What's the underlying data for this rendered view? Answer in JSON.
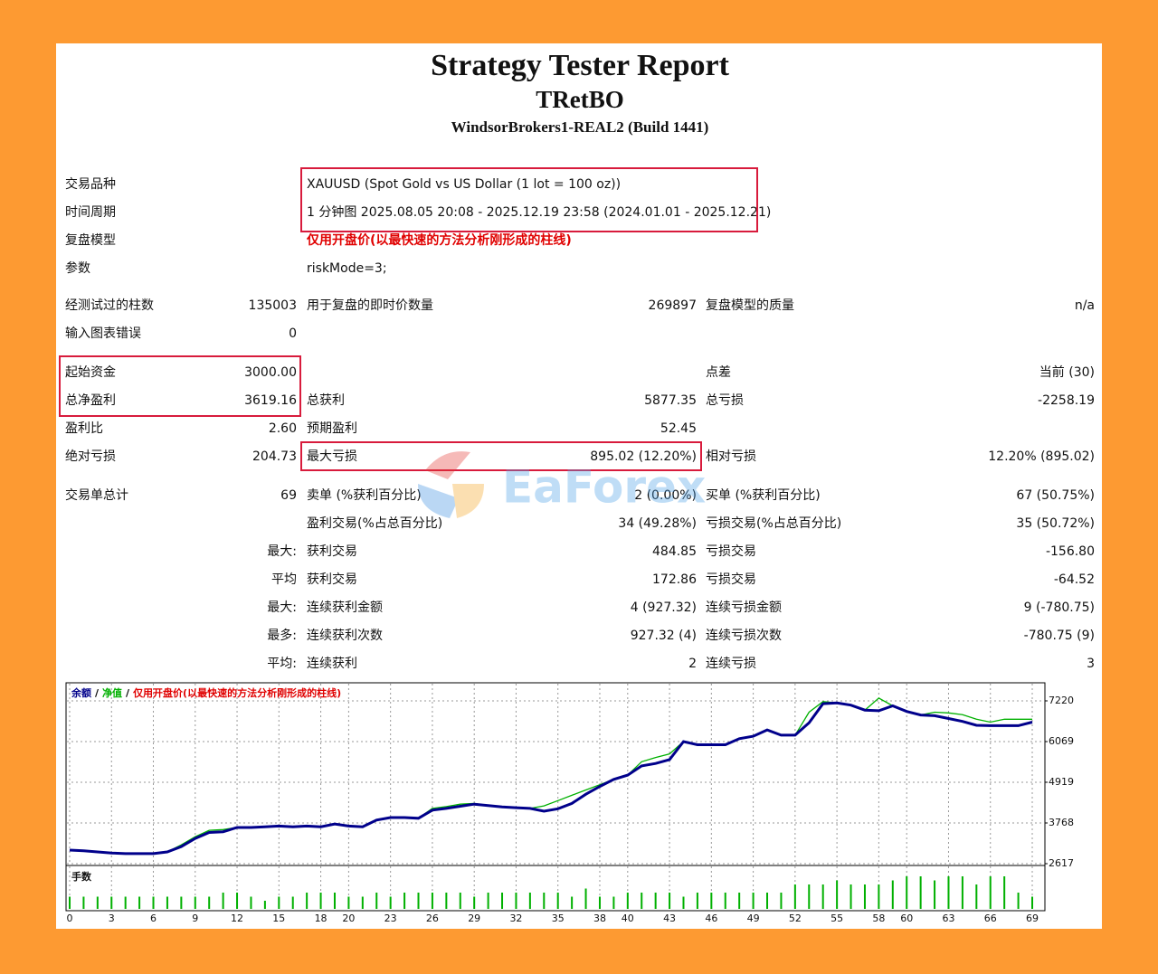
{
  "header": {
    "title": "Strategy Tester Report",
    "name": "TRetBO",
    "server": "WindsorBrokers1-REAL2 (Build 1441)"
  },
  "info_rows": [
    {
      "label": "交易品种",
      "value": "XAUUSD (Spot Gold vs US Dollar (1 lot = 100 oz))"
    },
    {
      "label": "时间周期",
      "value": "1 分钟图 2025.08.05 20:08 - 2025.12.19 23:58 (2024.01.01 - 2025.12.21)"
    },
    {
      "label": "复盘模型",
      "value": "仅用开盘价(以最快速的方法分析刚形成的柱线)",
      "color": "#e00000"
    },
    {
      "label": "参数",
      "value": "riskMode=3;"
    }
  ],
  "stat_groups": [
    [
      [
        "经测试过的柱数",
        "135003",
        "用于复盘的即时价数量",
        "269897",
        "复盘模型的质量",
        "n/a"
      ],
      [
        "输入图表错误",
        "0",
        null,
        null,
        null,
        null
      ]
    ],
    [
      [
        "起始资金",
        "3000.00",
        null,
        null,
        "点差",
        "当前 (30)"
      ],
      [
        "总净盈利",
        "3619.16",
        "总获利",
        "5877.35",
        "总亏损",
        "-2258.19"
      ],
      [
        "盈利比",
        "2.60",
        "预期盈利",
        "52.45",
        null,
        null
      ],
      [
        "绝对亏损",
        "204.73",
        "最大亏损",
        "895.02 (12.20%)",
        "相对亏损",
        "12.20% (895.02)"
      ]
    ],
    [
      [
        "交易单总计",
        "69",
        "卖单 (%获利百分比)",
        "2 (0.00%)",
        "买单 (%获利百分比)",
        "67 (50.75%)"
      ],
      [
        null,
        null,
        "盈利交易(%占总百分比)",
        "34 (49.28%)",
        "亏损交易(%占总百分比)",
        "35 (50.72%)"
      ],
      [
        null,
        "最大:",
        "获利交易",
        "484.85",
        "亏损交易",
        "-156.80"
      ],
      [
        null,
        "平均",
        "获利交易",
        "172.86",
        "亏损交易",
        "-64.52"
      ],
      [
        null,
        "最大:",
        "连续获利金额",
        "4 (927.32)",
        "连续亏损金额",
        "9 (-780.75)"
      ],
      [
        null,
        "最多:",
        "连续获利次数",
        "927.32 (4)",
        "连续亏损次数",
        "-780.75 (9)"
      ],
      [
        null,
        "平均:",
        "连续获利",
        "2",
        "连续亏损",
        "3"
      ]
    ]
  ],
  "watermark": "EaForex",
  "chart_data": [
    {
      "type": "line",
      "x": [
        0,
        1,
        2,
        3,
        4,
        5,
        6,
        7,
        8,
        9,
        10,
        11,
        12,
        13,
        14,
        15,
        16,
        17,
        18,
        19,
        20,
        21,
        22,
        23,
        24,
        25,
        26,
        27,
        28,
        29,
        30,
        31,
        32,
        33,
        34,
        35,
        36,
        37,
        38,
        39,
        40,
        41,
        42,
        43,
        44,
        45,
        46,
        47,
        48,
        49,
        50,
        51,
        52,
        53,
        54,
        55,
        56,
        57,
        58,
        59,
        60,
        61,
        62,
        63,
        64,
        65,
        66,
        67,
        68,
        69
      ],
      "series": [
        {
          "name": "余额",
          "color": "#00008b",
          "values": [
            3000,
            2980,
            2950,
            2920,
            2900,
            2900,
            2900,
            2950,
            3100,
            3330,
            3500,
            3520,
            3640,
            3640,
            3660,
            3680,
            3660,
            3680,
            3660,
            3740,
            3680,
            3660,
            3850,
            3920,
            3920,
            3900,
            4130,
            4180,
            4240,
            4300,
            4260,
            4220,
            4200,
            4180,
            4100,
            4170,
            4320,
            4580,
            4800,
            5000,
            5120,
            5380,
            5450,
            5560,
            6070,
            5980,
            5980,
            5980,
            6150,
            6220,
            6400,
            6250,
            6250,
            6600,
            7140,
            7160,
            7100,
            6960,
            6940,
            7080,
            6920,
            6820,
            6800,
            6720,
            6640,
            6530,
            6520,
            6520,
            6520,
            6619.16
          ]
        },
        {
          "name": "净值",
          "color": "#00b000",
          "values": [
            3000,
            2980,
            2950,
            2920,
            2900,
            2900,
            2900,
            2950,
            3150,
            3380,
            3560,
            3580,
            3640,
            3640,
            3660,
            3680,
            3660,
            3680,
            3660,
            3740,
            3680,
            3660,
            3850,
            3920,
            3920,
            3900,
            4180,
            4230,
            4300,
            4320,
            4260,
            4220,
            4200,
            4180,
            4250,
            4400,
            4550,
            4700,
            4850,
            5000,
            5120,
            5500,
            5620,
            5720,
            6070,
            5980,
            5980,
            5980,
            6150,
            6220,
            6400,
            6250,
            6250,
            6900,
            7200,
            7160,
            7100,
            6960,
            7300,
            7080,
            6920,
            6820,
            6900,
            6880,
            6830,
            6700,
            6620,
            6700,
            6700,
            6700
          ]
        }
      ],
      "legend_separator": "/",
      "legend_note": "仅用开盘价(以最快速的方法分析刚形成的柱线)",
      "legend_note_color": "#e00000",
      "xlim": [
        0,
        69
      ],
      "xticks": [
        0,
        3,
        6,
        9,
        12,
        15,
        18,
        20,
        23,
        26,
        29,
        32,
        35,
        38,
        40,
        43,
        46,
        49,
        52,
        55,
        58,
        60,
        63,
        66,
        69
      ],
      "ylim": [
        2566,
        7731
      ],
      "yticks": [
        2617,
        3768,
        4919,
        6069,
        7220
      ],
      "grid": true
    },
    {
      "type": "bar",
      "label": "手数",
      "color": "#00b000",
      "x": [
        0,
        1,
        2,
        3,
        4,
        5,
        6,
        7,
        8,
        9,
        10,
        11,
        12,
        13,
        14,
        15,
        16,
        17,
        18,
        19,
        20,
        21,
        22,
        23,
        24,
        25,
        26,
        27,
        28,
        29,
        30,
        31,
        32,
        33,
        34,
        35,
        36,
        37,
        38,
        39,
        40,
        41,
        42,
        43,
        44,
        45,
        46,
        47,
        48,
        49,
        50,
        51,
        52,
        53,
        54,
        55,
        56,
        57,
        58,
        59,
        60,
        61,
        62,
        63,
        64,
        65,
        66,
        67,
        68,
        69
      ],
      "values": [
        0.03,
        0.03,
        0.03,
        0.03,
        0.03,
        0.03,
        0.03,
        0.03,
        0.03,
        0.03,
        0.03,
        0.04,
        0.04,
        0.03,
        0.02,
        0.03,
        0.03,
        0.04,
        0.04,
        0.04,
        0.03,
        0.03,
        0.04,
        0.03,
        0.04,
        0.04,
        0.04,
        0.04,
        0.04,
        0.03,
        0.04,
        0.04,
        0.04,
        0.04,
        0.04,
        0.04,
        0.03,
        0.05,
        0.03,
        0.03,
        0.04,
        0.04,
        0.04,
        0.04,
        0.03,
        0.04,
        0.04,
        0.04,
        0.04,
        0.04,
        0.04,
        0.04,
        0.06,
        0.06,
        0.06,
        0.07,
        0.06,
        0.06,
        0.06,
        0.07,
        0.08,
        0.08,
        0.07,
        0.08,
        0.08,
        0.06,
        0.08,
        0.08,
        0.04,
        0.03
      ],
      "xlim": [
        0,
        69
      ],
      "ylim": [
        0,
        0.1
      ]
    }
  ]
}
